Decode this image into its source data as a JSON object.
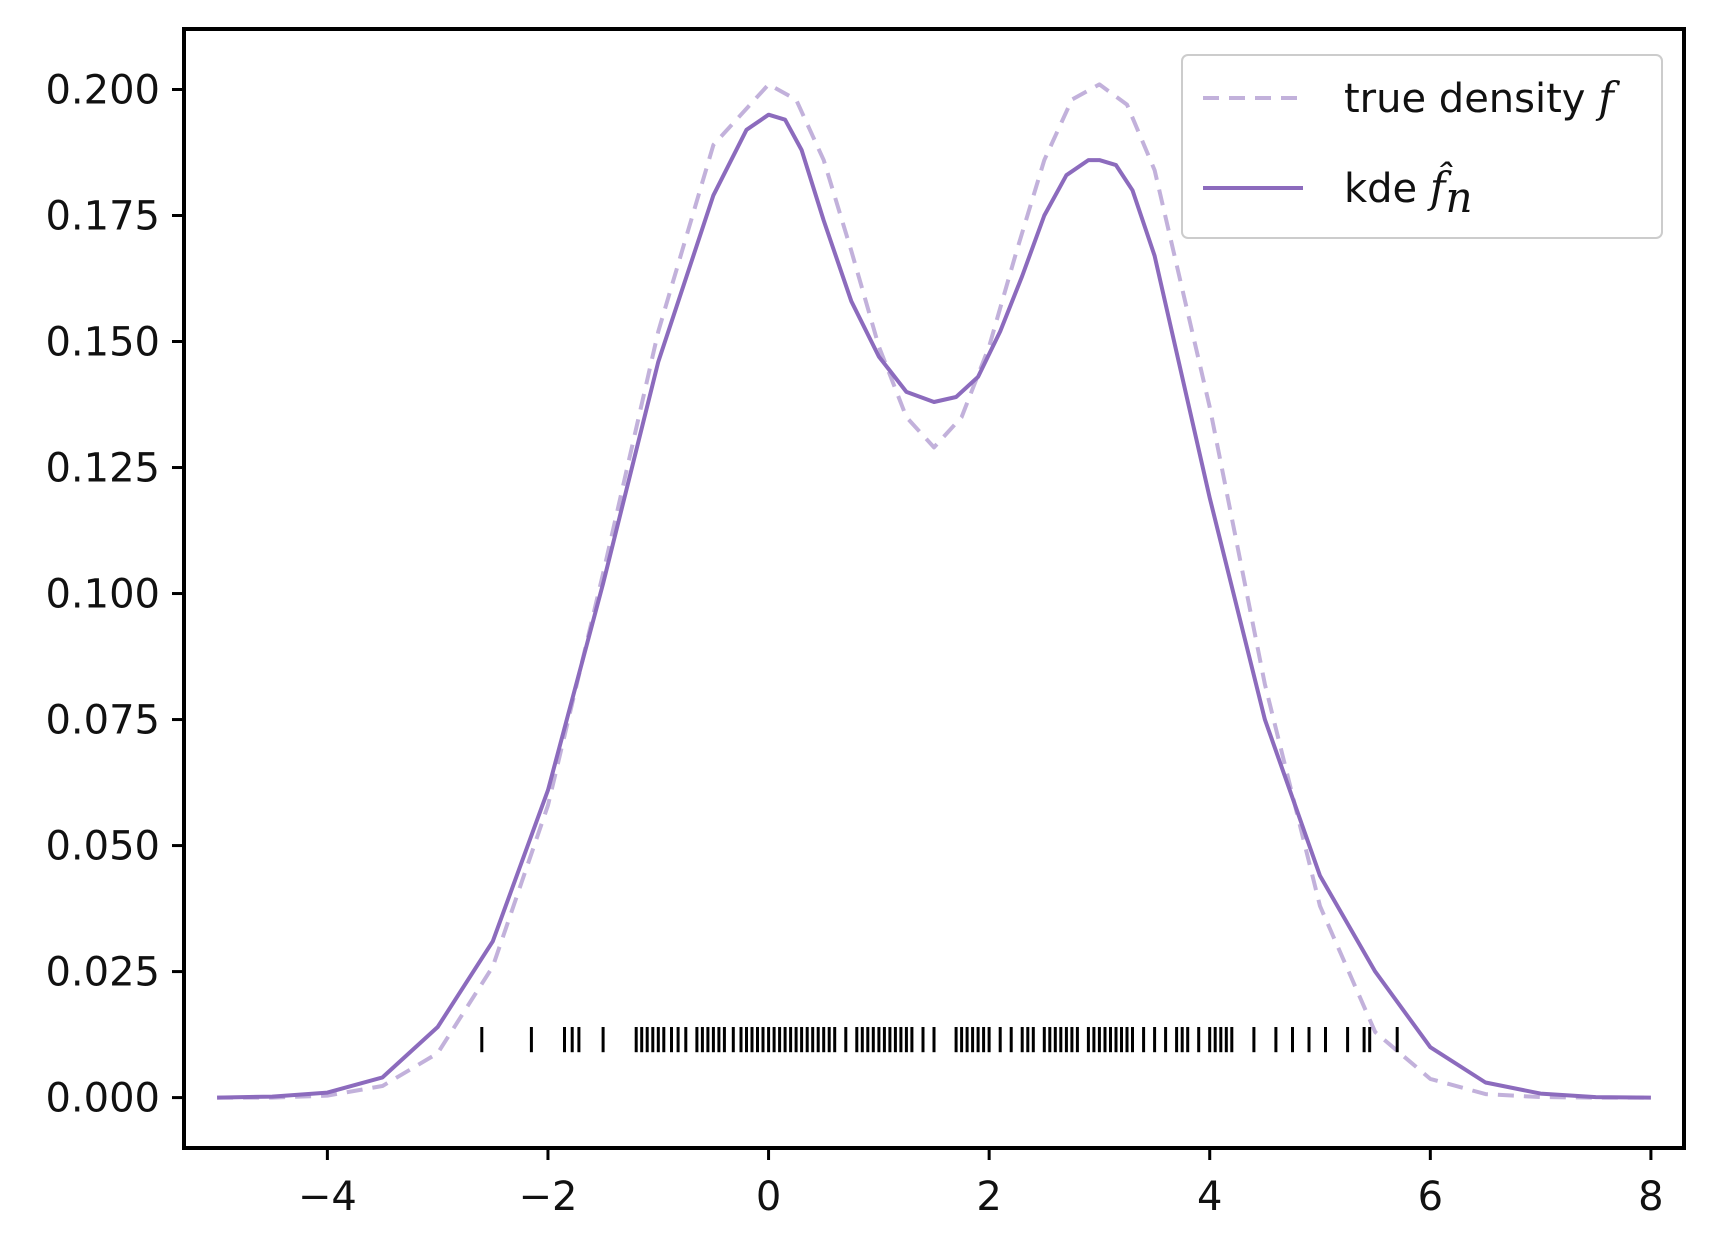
{
  "chart_data": {
    "type": "line",
    "title": "",
    "xlabel": "",
    "ylabel": "",
    "xlim": [
      -5.3,
      8.3
    ],
    "ylim": [
      -0.01,
      0.212
    ],
    "grid": false,
    "legend_position": "top-right",
    "x_ticks": [
      -4,
      -2,
      0,
      2,
      4,
      6,
      8
    ],
    "x_tick_labels": [
      "−4",
      "−2",
      "0",
      "2",
      "4",
      "6",
      "8"
    ],
    "y_ticks": [
      0.0,
      0.025,
      0.05,
      0.075,
      0.1,
      0.125,
      0.15,
      0.175,
      0.2
    ],
    "y_tick_labels": [
      "0.000",
      "0.025",
      "0.050",
      "0.075",
      "0.100",
      "0.125",
      "0.150",
      "0.175",
      "0.200"
    ],
    "series": [
      {
        "name": "true density f",
        "legend_text": "true density ",
        "legend_symbol": "f",
        "style": "dashed",
        "color": "#c2b1db",
        "x": [
          -5,
          -4.5,
          -4,
          -3.5,
          -3,
          -2.5,
          -2,
          -1.5,
          -1,
          -0.5,
          0,
          0.25,
          0.5,
          0.75,
          1,
          1.25,
          1.5,
          1.75,
          2,
          2.25,
          2.5,
          2.75,
          3,
          3.25,
          3.5,
          4,
          4.5,
          5,
          5.5,
          6,
          6.5,
          7,
          7.5,
          8
        ],
        "y": [
          0.0,
          0.0,
          0.0004,
          0.0023,
          0.0088,
          0.026,
          0.058,
          0.104,
          0.152,
          0.189,
          0.201,
          0.198,
          0.186,
          0.168,
          0.149,
          0.135,
          0.129,
          0.135,
          0.149,
          0.168,
          0.186,
          0.198,
          0.201,
          0.197,
          0.184,
          0.137,
          0.082,
          0.038,
          0.013,
          0.0037,
          0.0007,
          0.0001,
          0.0,
          0.0
        ]
      },
      {
        "name": "kde f̂ₙ",
        "legend_text": "kde ",
        "legend_symbol": "f̂",
        "legend_subscript": "n",
        "style": "solid",
        "color": "#8c6bbd",
        "x": [
          -5,
          -4.5,
          -4,
          -3.5,
          -3,
          -2.5,
          -2,
          -1.5,
          -1,
          -0.5,
          -0.2,
          0,
          0.15,
          0.3,
          0.5,
          0.75,
          1,
          1.25,
          1.5,
          1.7,
          1.9,
          2.1,
          2.3,
          2.5,
          2.7,
          2.9,
          3.0,
          3.15,
          3.3,
          3.5,
          4,
          4.5,
          5,
          5.5,
          6,
          6.5,
          7,
          7.5,
          8
        ],
        "y": [
          0.0,
          0.0002,
          0.001,
          0.004,
          0.014,
          0.031,
          0.061,
          0.102,
          0.146,
          0.179,
          0.192,
          0.195,
          0.194,
          0.188,
          0.174,
          0.158,
          0.147,
          0.14,
          0.138,
          0.139,
          0.143,
          0.152,
          0.163,
          0.175,
          0.183,
          0.186,
          0.186,
          0.185,
          0.18,
          0.167,
          0.119,
          0.075,
          0.044,
          0.025,
          0.01,
          0.003,
          0.0008,
          0.0001,
          0.0
        ]
      }
    ],
    "rug": {
      "color": "#000000",
      "y": 0.0115,
      "height": 0.005,
      "x": [
        -2.6,
        -2.15,
        -1.85,
        -1.78,
        -1.72,
        -1.5,
        -1.2,
        -1.15,
        -1.1,
        -1.05,
        -1.0,
        -0.95,
        -0.88,
        -0.82,
        -0.75,
        -0.65,
        -0.6,
        -0.55,
        -0.5,
        -0.45,
        -0.4,
        -0.32,
        -0.25,
        -0.2,
        -0.15,
        -0.1,
        -0.05,
        0.0,
        0.05,
        0.1,
        0.15,
        0.2,
        0.25,
        0.3,
        0.35,
        0.4,
        0.45,
        0.5,
        0.55,
        0.6,
        0.7,
        0.8,
        0.85,
        0.9,
        0.95,
        1.0,
        1.05,
        1.1,
        1.15,
        1.2,
        1.25,
        1.3,
        1.4,
        1.5,
        1.7,
        1.75,
        1.8,
        1.85,
        1.9,
        1.95,
        2.0,
        2.1,
        2.2,
        2.3,
        2.35,
        2.4,
        2.5,
        2.55,
        2.6,
        2.65,
        2.7,
        2.75,
        2.8,
        2.9,
        2.95,
        3.0,
        3.05,
        3.1,
        3.15,
        3.2,
        3.25,
        3.3,
        3.4,
        3.5,
        3.6,
        3.7,
        3.75,
        3.8,
        3.9,
        4.0,
        4.05,
        4.1,
        4.15,
        4.2,
        4.4,
        4.6,
        4.75,
        4.9,
        5.05,
        5.25,
        5.4,
        5.45,
        5.7
      ]
    }
  }
}
